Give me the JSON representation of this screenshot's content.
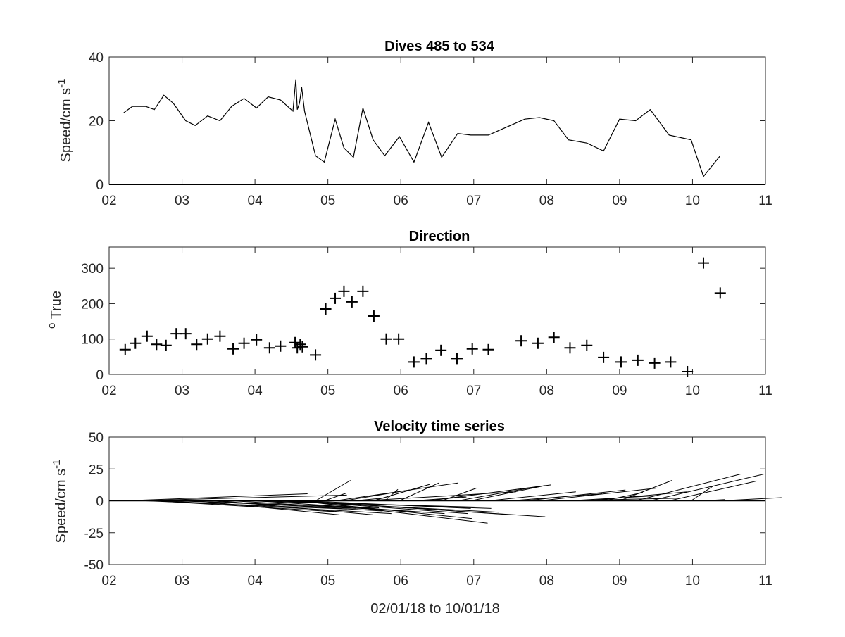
{
  "figure": {
    "xlabel": "02/01/18 to 10/01/18"
  },
  "chart_data": [
    {
      "type": "line",
      "title": "Dives 485 to 534",
      "ylabel": "Speed/cm s",
      "ylabel_superscript": "-1",
      "xlim": [
        2,
        11
      ],
      "ylim": [
        0,
        40
      ],
      "xticks": [
        2,
        3,
        4,
        5,
        6,
        7,
        8,
        9,
        10,
        11
      ],
      "xtick_labels": [
        "02",
        "03",
        "04",
        "05",
        "06",
        "07",
        "08",
        "09",
        "10",
        "11"
      ],
      "yticks": [
        0,
        20,
        40
      ],
      "ytick_labels": [
        "0",
        "20",
        "40"
      ],
      "grid": false,
      "line_color": "#000000",
      "x": [
        2.2,
        2.32,
        2.5,
        2.62,
        2.75,
        2.88,
        3.05,
        3.18,
        3.35,
        3.52,
        3.68,
        3.85,
        4.02,
        4.18,
        4.35,
        4.52,
        4.56,
        4.58,
        4.61,
        4.64,
        4.68,
        4.83,
        4.95,
        5.1,
        5.22,
        5.35,
        5.48,
        5.62,
        5.78,
        5.98,
        6.18,
        6.38,
        6.56,
        6.78,
        6.96,
        7.2,
        7.5,
        7.7,
        7.9,
        8.1,
        8.3,
        8.55,
        8.78,
        9.0,
        9.22,
        9.42,
        9.68,
        9.98,
        10.15,
        10.38
      ],
      "y": [
        22.5,
        24.5,
        24.5,
        23.5,
        28,
        25.5,
        20,
        18.5,
        21.5,
        20,
        24.5,
        27,
        24,
        27.5,
        26.5,
        23,
        33,
        23.5,
        25.5,
        30.5,
        23,
        9,
        7,
        20.5,
        11.5,
        8.5,
        24,
        14,
        9,
        15,
        7,
        19.5,
        8.5,
        16,
        15.5,
        15.5,
        18.5,
        20.5,
        21,
        20,
        14,
        13,
        10.5,
        20.5,
        20,
        23.5,
        15.5,
        14,
        2.5,
        9
      ]
    },
    {
      "type": "scatter",
      "title": "Direction",
      "ylabel": "True",
      "ylabel_superscript": "o",
      "xlim": [
        2,
        11
      ],
      "ylim": [
        0,
        360
      ],
      "xticks": [
        2,
        3,
        4,
        5,
        6,
        7,
        8,
        9,
        10,
        11
      ],
      "xtick_labels": [
        "02",
        "03",
        "04",
        "05",
        "06",
        "07",
        "08",
        "09",
        "10",
        "11"
      ],
      "yticks": [
        0,
        100,
        200,
        300
      ],
      "ytick_labels": [
        "0",
        "100",
        "200",
        "300"
      ],
      "grid": false,
      "marker": "+",
      "marker_color": "#000000",
      "x": [
        2.22,
        2.36,
        2.52,
        2.65,
        2.78,
        2.92,
        3.05,
        3.2,
        3.35,
        3.52,
        3.7,
        3.85,
        4.02,
        4.2,
        4.35,
        4.55,
        4.58,
        4.62,
        4.65,
        4.83,
        4.97,
        5.1,
        5.22,
        5.33,
        5.48,
        5.63,
        5.8,
        5.97,
        6.18,
        6.35,
        6.55,
        6.77,
        6.98,
        7.2,
        7.65,
        7.88,
        8.1,
        8.32,
        8.55,
        8.78,
        9.02,
        9.25,
        9.48,
        9.7,
        9.93,
        10.15,
        10.38
      ],
      "y": [
        70,
        88,
        108,
        85,
        82,
        115,
        115,
        85,
        100,
        108,
        72,
        88,
        98,
        75,
        80,
        90,
        75,
        85,
        78,
        55,
        185,
        215,
        235,
        205,
        235,
        165,
        100,
        100,
        35,
        45,
        68,
        45,
        72,
        70,
        95,
        88,
        105,
        75,
        82,
        48,
        35,
        40,
        32,
        35,
        8,
        315,
        230
      ]
    },
    {
      "type": "quiver",
      "title": "Velocity time series",
      "ylabel": "Speed/cm s",
      "ylabel_superscript": "-1",
      "xlim": [
        2,
        11
      ],
      "ylim": [
        -50,
        50
      ],
      "xticks": [
        2,
        3,
        4,
        5,
        6,
        7,
        8,
        9,
        10,
        11
      ],
      "xtick_labels": [
        "02",
        "03",
        "04",
        "05",
        "06",
        "07",
        "08",
        "09",
        "10",
        "11"
      ],
      "yticks": [
        -50,
        -25,
        0,
        25,
        50
      ],
      "ytick_labels": [
        "-50",
        "-25",
        "0",
        "25",
        "50"
      ],
      "grid": false,
      "baseline": 0,
      "line_color": "#000000",
      "x": [
        2.2,
        2.32,
        2.5,
        2.62,
        2.75,
        2.88,
        3.05,
        3.18,
        3.35,
        3.52,
        3.68,
        3.85,
        4.02,
        4.18,
        4.35,
        4.52,
        4.56,
        4.58,
        4.61,
        4.64,
        4.68,
        4.83,
        4.95,
        5.1,
        5.22,
        5.35,
        5.48,
        5.62,
        5.78,
        5.98,
        6.18,
        6.38,
        6.56,
        6.78,
        6.96,
        7.2,
        7.5,
        7.7,
        7.9,
        8.1,
        8.3,
        8.55,
        8.78,
        9.0,
        9.22,
        9.42,
        9.68,
        9.98,
        10.15,
        10.38
      ],
      "u": [
        21,
        24.5,
        23,
        20.5,
        26,
        23.5,
        19.5,
        16.5,
        20,
        17.5,
        22,
        26.5,
        21.5,
        25.5,
        25,
        20,
        28.5,
        20,
        21.5,
        24,
        19,
        4,
        2.5,
        14,
        7.5,
        4,
        17.5,
        6.5,
        1.5,
        4.5,
        6,
        14,
        4,
        9,
        8.5,
        10,
        10.5,
        11.5,
        13.5,
        14,
        10,
        11.5,
        4.5,
        6,
        12,
        13,
        10,
        2.5,
        2.5,
        7
      ],
      "v": [
        5.5,
        4.5,
        -6.5,
        -8.5,
        -10,
        -5.5,
        -6,
        -11,
        -8,
        -11,
        -9,
        -5,
        -10,
        -6,
        -9,
        -10,
        -12.5,
        -14,
        -17.5,
        -11,
        -6,
        16,
        6,
        14,
        8.5,
        2.5,
        7,
        13,
        9,
        14,
        3,
        12.5,
        10,
        11,
        12,
        7,
        5.5,
        8.5,
        10,
        2,
        4,
        7,
        6.5,
        16,
        21,
        21,
        15.5,
        11.5,
        1,
        2.5
      ]
    }
  ]
}
